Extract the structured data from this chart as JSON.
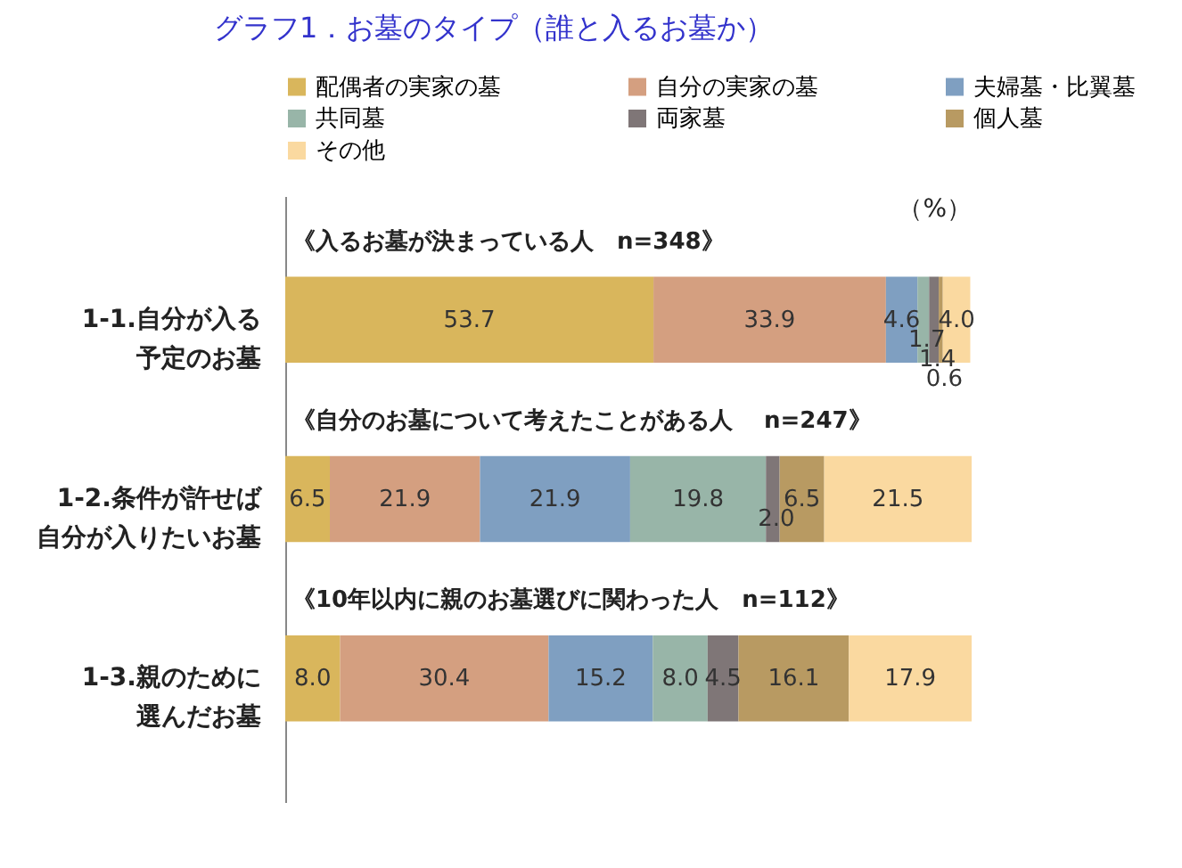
{
  "chart_data": {
    "type": "bar",
    "orientation": "horizontal",
    "stacked": true,
    "legend": "top",
    "title": "グラフ1．お墓のタイプ（誰と入るお墓か）",
    "categories": [
      "1-1.自分が入る予定のお墓",
      "1-2.条件が許せば自分が入りたいお墓",
      "1-3.親のために選んだお墓"
    ],
    "annotations": [
      "《入るお墓が決まっている人　n=348》",
      "《自分のお墓について考えたことがある人　 n=247》",
      "《10年以内に親のお墓選びに関わった人　n=112》",
      "（%）"
    ],
    "series": [
      {
        "name": "配偶者の実家の墓",
        "color": "#d9b65c",
        "values": [
          53.7,
          6.5,
          8.0
        ],
        "value_labels": [
          "53.7",
          "6.5",
          "8.0"
        ]
      },
      {
        "name": "自分の実家の墓",
        "color": "#d49f80",
        "values": [
          33.9,
          21.9,
          30.4
        ],
        "value_labels": [
          "33.9",
          "21.9",
          "30.4"
        ]
      },
      {
        "name": "夫婦墓・比翼墓",
        "color": "#7f9fc1",
        "values": [
          4.6,
          21.9,
          15.2
        ],
        "value_labels": [
          "4.6",
          "21.9",
          "15.2"
        ]
      },
      {
        "name": "共同墓",
        "color": "#98b5a8",
        "values": [
          1.7,
          19.8,
          8.0
        ],
        "value_labels": [
          "1.7",
          "19.8",
          "8.0"
        ]
      },
      {
        "name": "両家墓",
        "color": "#7f7677",
        "values": [
          1.4,
          2.0,
          4.5
        ],
        "value_labels": [
          "1.4",
          "2.0",
          "4.5"
        ]
      },
      {
        "name": "個人墓",
        "color": "#b89a62",
        "values": [
          0.6,
          6.5,
          16.1
        ],
        "value_labels": [
          "0.6",
          "6.5",
          "16.1"
        ]
      },
      {
        "name": "その他",
        "color": "#fad9a0",
        "values": [
          4.0,
          21.5,
          17.9
        ],
        "value_labels": [
          "4.0",
          "21.5",
          "17.9"
        ]
      }
    ]
  }
}
